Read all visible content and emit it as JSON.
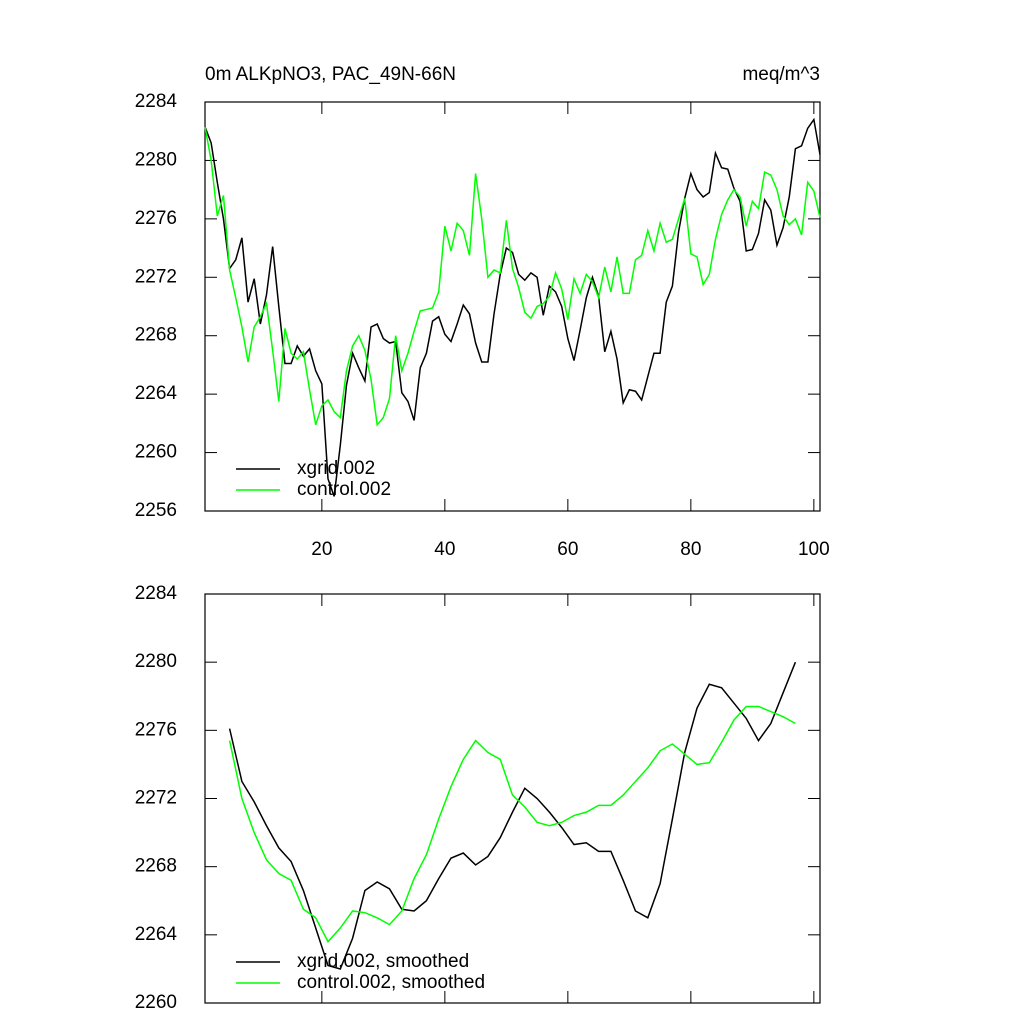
{
  "chart_data": [
    {
      "type": "line",
      "title": "0m ALKpNO3, PAC_49N-66N",
      "right_title": "meq/m^3",
      "x": [
        1,
        2,
        3,
        4,
        5,
        6,
        7,
        8,
        9,
        10,
        11,
        12,
        13,
        14,
        15,
        16,
        17,
        18,
        19,
        20,
        21,
        22,
        23,
        24,
        25,
        26,
        27,
        28,
        29,
        30,
        31,
        32,
        33,
        34,
        35,
        36,
        37,
        38,
        39,
        40,
        41,
        42,
        43,
        44,
        45,
        46,
        47,
        48,
        49,
        50,
        51,
        52,
        53,
        54,
        55,
        56,
        57,
        58,
        59,
        60,
        61,
        62,
        63,
        64,
        65,
        66,
        67,
        68,
        69,
        70,
        71,
        72,
        73,
        74,
        75,
        76,
        77,
        78,
        79,
        80,
        81,
        82,
        83,
        84,
        85,
        86,
        87,
        88,
        89,
        90,
        91,
        92,
        93,
        94,
        95,
        96,
        97,
        98,
        99,
        100,
        101
      ],
      "series": [
        {
          "name": "xgrid.002",
          "color": "#000000",
          "values": [
            2282.3,
            2281.2,
            2278.5,
            2276,
            2272.6,
            2273.2,
            2274.7,
            2270.3,
            2271.9,
            2268.8,
            2270.8,
            2274.1,
            2270,
            2266.1,
            2266.1,
            2267.3,
            2266.6,
            2267.1,
            2265.6,
            2264.7,
            2258.2,
            2257,
            2260.5,
            2264.6,
            2266.8,
            2265.8,
            2264.9,
            2268.6,
            2268.8,
            2267.8,
            2267.5,
            2267.6,
            2264.1,
            2263.5,
            2262.2,
            2265.8,
            2266.8,
            2269,
            2269.3,
            2268.1,
            2267.6,
            2268.8,
            2270.1,
            2269.5,
            2267.5,
            2266.2,
            2266.2,
            2269.5,
            2272.2,
            2274,
            2273.7,
            2272.2,
            2271.8,
            2272.3,
            2272,
            2269.4,
            2271.4,
            2271,
            2270,
            2267.8,
            2266.3,
            2268.4,
            2270.6,
            2272,
            2270.7,
            2266.9,
            2268.3,
            2266.4,
            2263.4,
            2264.3,
            2264.2,
            2263.6,
            2265.2,
            2266.8,
            2266.8,
            2270.3,
            2271.4,
            2275.1,
            2277.4,
            2279.1,
            2278,
            2277.5,
            2277.8,
            2280.5,
            2279.5,
            2279.4,
            2278.1,
            2277.2,
            2273.8,
            2273.9,
            2275,
            2277.3,
            2276.6,
            2274.2,
            2275.4,
            2277.5,
            2280.8,
            2281,
            2282.2,
            2282.8,
            2280.4
          ]
        },
        {
          "name": "control.002",
          "color": "#00ff00",
          "values": [
            2282.3,
            2280,
            2276.2,
            2277.6,
            2272.5,
            2270.6,
            2268.6,
            2266.2,
            2268.6,
            2269.3,
            2270.2,
            2267,
            2263.5,
            2268.5,
            2266.8,
            2266.4,
            2266.9,
            2264.3,
            2261.9,
            2263.2,
            2263.6,
            2262.8,
            2262.4,
            2265.6,
            2267.3,
            2268,
            2267,
            2265,
            2261.9,
            2262.4,
            2263.7,
            2268,
            2265.6,
            2266.8,
            2268.3,
            2269.7,
            2269.8,
            2269.9,
            2271,
            2275.5,
            2273.8,
            2275.7,
            2275.2,
            2273.5,
            2279.1,
            2276,
            2272,
            2272.5,
            2272.3,
            2275.9,
            2272.6,
            2271.3,
            2269.6,
            2269.2,
            2270,
            2270.2,
            2270.7,
            2272.3,
            2271.2,
            2269.1,
            2271.9,
            2270.9,
            2272.2,
            2271.7,
            2270.6,
            2272.7,
            2271,
            2273.4,
            2270.9,
            2270.9,
            2273.2,
            2273.5,
            2275.2,
            2273.8,
            2275.7,
            2274.4,
            2274.6,
            2276,
            2277.4,
            2273.6,
            2273.4,
            2271.5,
            2272.2,
            2274.6,
            2276.3,
            2277.3,
            2278,
            2277.5,
            2275.5,
            2277.2,
            2276.7,
            2279.2,
            2279,
            2278,
            2276.2,
            2275.6,
            2276,
            2274.9,
            2278.5,
            2277.9,
            2276.1
          ]
        }
      ],
      "xlim": [
        1,
        101
      ],
      "xticks": [
        20,
        40,
        60,
        80,
        100
      ],
      "ylim": [
        2256,
        2284
      ],
      "yticks": [
        2256,
        2260,
        2264,
        2268,
        2272,
        2276,
        2280,
        2284
      ]
    },
    {
      "type": "line",
      "x": [
        5,
        7,
        9,
        11,
        13,
        15,
        17,
        19,
        21,
        23,
        25,
        27,
        29,
        31,
        33,
        35,
        37,
        39,
        41,
        43,
        45,
        47,
        49,
        51,
        53,
        55,
        57,
        59,
        61,
        63,
        65,
        67,
        69,
        71,
        73,
        75,
        77,
        79,
        81,
        83,
        85,
        87,
        89,
        91,
        93,
        95,
        97
      ],
      "series": [
        {
          "name": "xgrid.002, smoothed",
          "color": "#000000",
          "values": [
            2276.1,
            2273,
            2271.8,
            2270.4,
            2269.1,
            2268.3,
            2266.6,
            2264.4,
            2262.2,
            2262,
            2263.8,
            2266.6,
            2267.1,
            2266.7,
            2265.5,
            2265.4,
            2266,
            2267.3,
            2268.5,
            2268.8,
            2268.1,
            2268.6,
            2269.7,
            2271.2,
            2272.6,
            2272,
            2271.2,
            2270.3,
            2269.3,
            2269.4,
            2268.9,
            2268.9,
            2267.2,
            2265.4,
            2265,
            2267,
            2270.8,
            2274.7,
            2277.3,
            2278.7,
            2278.5,
            2277.6,
            2276.7,
            2275.4,
            2276.4,
            2278.2,
            2280
          ]
        },
        {
          "name": "control.002, smoothed",
          "color": "#00ff00",
          "values": [
            2275.4,
            2272,
            2270,
            2268.4,
            2267.6,
            2267.2,
            2265.5,
            2265,
            2263.6,
            2264.4,
            2265.4,
            2265.3,
            2265,
            2264.6,
            2265.4,
            2267.3,
            2268.7,
            2270.8,
            2272.7,
            2274.3,
            2275.4,
            2274.7,
            2274.3,
            2272.2,
            2271.5,
            2270.6,
            2270.4,
            2270.6,
            2271,
            2271.2,
            2271.6,
            2271.6,
            2272.2,
            2273,
            2273.8,
            2274.8,
            2275.2,
            2274.6,
            2274,
            2274.1,
            2275.3,
            2276.6,
            2277.4,
            2277.4,
            2277.1,
            2276.8,
            2276.4
          ]
        }
      ],
      "xlim": [
        1,
        101
      ],
      "xticks": [
        20,
        40,
        60,
        80,
        100
      ],
      "ylim": [
        2260,
        2284
      ],
      "yticks": [
        2260,
        2264,
        2268,
        2272,
        2276,
        2280,
        2284
      ]
    }
  ]
}
